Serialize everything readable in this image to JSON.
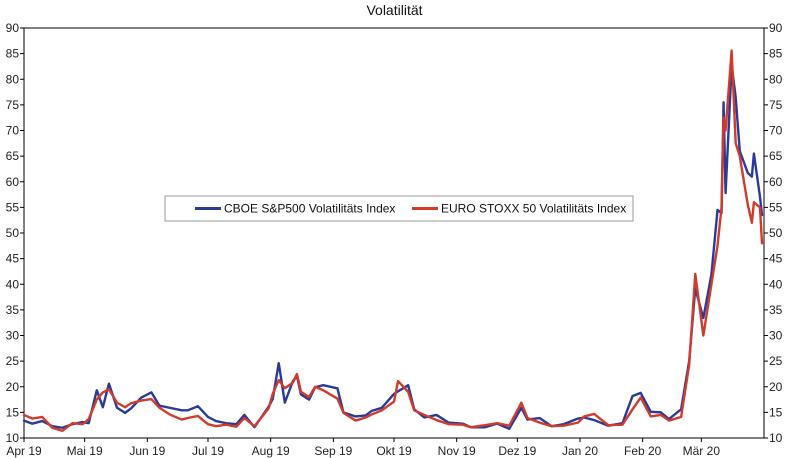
{
  "chart_data": {
    "type": "line",
    "title": "Volatilität",
    "xlabel": "",
    "ylabel": "",
    "ylim": [
      10,
      90
    ],
    "y_ticks": [
      10,
      15,
      20,
      25,
      30,
      35,
      40,
      45,
      50,
      55,
      60,
      65,
      70,
      75,
      80,
      85,
      90
    ],
    "y_axis_both_sides": true,
    "grid": false,
    "legend_position": "center-left",
    "x_ticks": [
      "Apr 19",
      "Mai 19",
      "Jun 19",
      "Jul 19",
      "Aug 19",
      "Sep 19",
      "Okt 19",
      "Nov 19",
      "Dez 19",
      "Jan 20",
      "Feb 20",
      "Mär 20"
    ],
    "x_ticks_dates": [
      "2019-04-01",
      "2019-05-01",
      "2019-06-01",
      "2019-07-01",
      "2019-08-01",
      "2019-09-01",
      "2019-10-01",
      "2019-11-01",
      "2019-12-01",
      "2020-01-01",
      "2020-02-01",
      "2020-03-01"
    ],
    "xlim": [
      "2019-04-01",
      "2020-04-01"
    ],
    "series": [
      {
        "name": "CBOE S&P500 Volatilitäts Index",
        "color": "#2b3a98",
        "points": [
          [
            "2019-04-01",
            13.4
          ],
          [
            "2019-04-05",
            12.8
          ],
          [
            "2019-04-10",
            13.3
          ],
          [
            "2019-04-15",
            12.3
          ],
          [
            "2019-04-20",
            12.0
          ],
          [
            "2019-04-25",
            12.7
          ],
          [
            "2019-04-30",
            13.1
          ],
          [
            "2019-05-03",
            12.9
          ],
          [
            "2019-05-07",
            19.3
          ],
          [
            "2019-05-10",
            16.0
          ],
          [
            "2019-05-13",
            20.6
          ],
          [
            "2019-05-17",
            15.9
          ],
          [
            "2019-05-21",
            14.9
          ],
          [
            "2019-05-24",
            15.8
          ],
          [
            "2019-05-29",
            17.9
          ],
          [
            "2019-06-03",
            18.9
          ],
          [
            "2019-06-07",
            16.3
          ],
          [
            "2019-06-12",
            15.9
          ],
          [
            "2019-06-18",
            15.4
          ],
          [
            "2019-06-21",
            15.4
          ],
          [
            "2019-06-26",
            16.2
          ],
          [
            "2019-07-01",
            14.1
          ],
          [
            "2019-07-05",
            13.3
          ],
          [
            "2019-07-10",
            12.9
          ],
          [
            "2019-07-15",
            12.7
          ],
          [
            "2019-07-19",
            14.5
          ],
          [
            "2019-07-24",
            12.1
          ],
          [
            "2019-07-31",
            16.1
          ],
          [
            "2019-08-02",
            17.6
          ],
          [
            "2019-08-05",
            24.6
          ],
          [
            "2019-08-08",
            16.9
          ],
          [
            "2019-08-12",
            21.1
          ],
          [
            "2019-08-14",
            22.1
          ],
          [
            "2019-08-16",
            18.5
          ],
          [
            "2019-08-20",
            17.5
          ],
          [
            "2019-08-23",
            19.9
          ],
          [
            "2019-08-27",
            20.3
          ],
          [
            "2019-09-03",
            19.7
          ],
          [
            "2019-09-06",
            15.0
          ],
          [
            "2019-09-12",
            14.2
          ],
          [
            "2019-09-17",
            14.4
          ],
          [
            "2019-09-20",
            15.3
          ],
          [
            "2019-09-25",
            15.9
          ],
          [
            "2019-10-01",
            18.6
          ],
          [
            "2019-10-03",
            19.1
          ],
          [
            "2019-10-08",
            20.3
          ],
          [
            "2019-10-11",
            15.6
          ],
          [
            "2019-10-16",
            14.0
          ],
          [
            "2019-10-22",
            14.5
          ],
          [
            "2019-10-28",
            13.0
          ],
          [
            "2019-11-04",
            12.8
          ],
          [
            "2019-11-08",
            12.1
          ],
          [
            "2019-11-15",
            12.1
          ],
          [
            "2019-11-21",
            12.8
          ],
          [
            "2019-11-27",
            11.8
          ],
          [
            "2019-12-03",
            15.9
          ],
          [
            "2019-12-06",
            13.6
          ],
          [
            "2019-12-12",
            13.9
          ],
          [
            "2019-12-18",
            12.3
          ],
          [
            "2019-12-24",
            12.7
          ],
          [
            "2019-12-31",
            13.8
          ],
          [
            "2020-01-03",
            14.0
          ],
          [
            "2020-01-08",
            13.5
          ],
          [
            "2020-01-15",
            12.4
          ],
          [
            "2020-01-22",
            12.9
          ],
          [
            "2020-01-27",
            18.2
          ],
          [
            "2020-01-31",
            18.8
          ],
          [
            "2020-02-05",
            15.1
          ],
          [
            "2020-02-10",
            15.0
          ],
          [
            "2020-02-14",
            13.7
          ],
          [
            "2020-02-20",
            15.6
          ],
          [
            "2020-02-24",
            25.0
          ],
          [
            "2020-02-27",
            39.2
          ],
          [
            "2020-03-02",
            33.4
          ],
          [
            "2020-03-06",
            41.9
          ],
          [
            "2020-03-09",
            54.5
          ],
          [
            "2020-03-11",
            53.9
          ],
          [
            "2020-03-12",
            75.5
          ],
          [
            "2020-03-13",
            57.8
          ],
          [
            "2020-03-16",
            82.7
          ],
          [
            "2020-03-18",
            76.5
          ],
          [
            "2020-03-20",
            66.0
          ],
          [
            "2020-03-24",
            61.7
          ],
          [
            "2020-03-26",
            61.0
          ],
          [
            "2020-03-27",
            65.5
          ],
          [
            "2020-03-30",
            57.1
          ],
          [
            "2020-03-31",
            53.5
          ]
        ]
      },
      {
        "name": "EURO STOXX 50 Volatilitäts Index",
        "color": "#d13b2c",
        "points": [
          [
            "2019-04-01",
            14.5
          ],
          [
            "2019-04-05",
            13.8
          ],
          [
            "2019-04-10",
            14.1
          ],
          [
            "2019-04-15",
            12.0
          ],
          [
            "2019-04-20",
            11.4
          ],
          [
            "2019-04-25",
            12.9
          ],
          [
            "2019-04-30",
            12.7
          ],
          [
            "2019-05-03",
            13.7
          ],
          [
            "2019-05-07",
            17.5
          ],
          [
            "2019-05-10",
            18.9
          ],
          [
            "2019-05-13",
            19.5
          ],
          [
            "2019-05-17",
            16.9
          ],
          [
            "2019-05-21",
            16.0
          ],
          [
            "2019-05-24",
            16.8
          ],
          [
            "2019-05-29",
            17.3
          ],
          [
            "2019-06-03",
            17.6
          ],
          [
            "2019-06-07",
            15.9
          ],
          [
            "2019-06-12",
            14.6
          ],
          [
            "2019-06-18",
            13.6
          ],
          [
            "2019-06-21",
            13.9
          ],
          [
            "2019-06-26",
            14.3
          ],
          [
            "2019-07-01",
            12.7
          ],
          [
            "2019-07-05",
            12.3
          ],
          [
            "2019-07-10",
            12.6
          ],
          [
            "2019-07-15",
            12.2
          ],
          [
            "2019-07-19",
            13.9
          ],
          [
            "2019-07-24",
            12.3
          ],
          [
            "2019-07-31",
            15.8
          ],
          [
            "2019-08-02",
            18.6
          ],
          [
            "2019-08-05",
            21.3
          ],
          [
            "2019-08-08",
            19.7
          ],
          [
            "2019-08-12",
            20.8
          ],
          [
            "2019-08-14",
            22.5
          ],
          [
            "2019-08-16",
            19.0
          ],
          [
            "2019-08-20",
            18.0
          ],
          [
            "2019-08-23",
            20.0
          ],
          [
            "2019-08-27",
            19.3
          ],
          [
            "2019-09-03",
            17.7
          ],
          [
            "2019-09-06",
            14.9
          ],
          [
            "2019-09-12",
            13.4
          ],
          [
            "2019-09-17",
            14.0
          ],
          [
            "2019-09-20",
            14.6
          ],
          [
            "2019-09-25",
            15.4
          ],
          [
            "2019-10-01",
            17.1
          ],
          [
            "2019-10-03",
            21.1
          ],
          [
            "2019-10-08",
            19.0
          ],
          [
            "2019-10-11",
            15.4
          ],
          [
            "2019-10-16",
            14.5
          ],
          [
            "2019-10-22",
            13.5
          ],
          [
            "2019-10-28",
            12.7
          ],
          [
            "2019-11-04",
            12.6
          ],
          [
            "2019-11-08",
            12.1
          ],
          [
            "2019-11-15",
            12.5
          ],
          [
            "2019-11-21",
            12.9
          ],
          [
            "2019-11-27",
            12.4
          ],
          [
            "2019-12-03",
            16.9
          ],
          [
            "2019-12-06",
            13.9
          ],
          [
            "2019-12-12",
            13.0
          ],
          [
            "2019-12-18",
            12.3
          ],
          [
            "2019-12-24",
            12.4
          ],
          [
            "2019-12-31",
            13.0
          ],
          [
            "2020-01-03",
            14.2
          ],
          [
            "2020-01-08",
            14.7
          ],
          [
            "2020-01-15",
            12.5
          ],
          [
            "2020-01-22",
            12.6
          ],
          [
            "2020-01-27",
            15.6
          ],
          [
            "2020-01-31",
            17.9
          ],
          [
            "2020-02-05",
            14.2
          ],
          [
            "2020-02-10",
            14.5
          ],
          [
            "2020-02-14",
            13.4
          ],
          [
            "2020-02-20",
            14.1
          ],
          [
            "2020-02-24",
            24.3
          ],
          [
            "2020-02-27",
            42.0
          ],
          [
            "2020-03-02",
            30.0
          ],
          [
            "2020-03-06",
            40.0
          ],
          [
            "2020-03-09",
            47.5
          ],
          [
            "2020-03-11",
            55.0
          ],
          [
            "2020-03-12",
            72.5
          ],
          [
            "2020-03-13",
            70.0
          ],
          [
            "2020-03-16",
            85.6
          ],
          [
            "2020-03-18",
            67.5
          ],
          [
            "2020-03-20",
            65.0
          ],
          [
            "2020-03-24",
            55.5
          ],
          [
            "2020-03-26",
            52.0
          ],
          [
            "2020-03-27",
            56.0
          ],
          [
            "2020-03-30",
            55.0
          ],
          [
            "2020-03-31",
            48.0
          ]
        ]
      }
    ]
  }
}
